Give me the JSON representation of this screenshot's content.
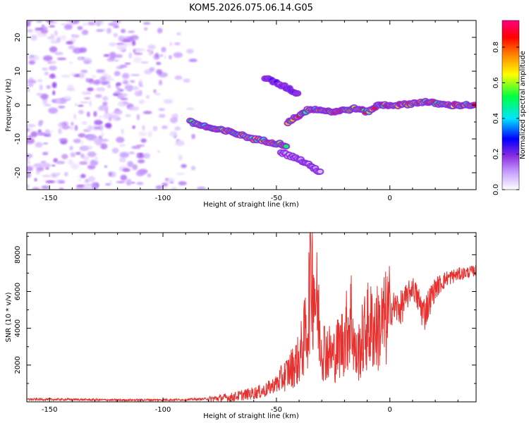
{
  "title": "KOM5.2026.075.06.14.G05",
  "colors": {
    "snr_line": "#e8312f",
    "axis": "#000000",
    "background": "#ffffff",
    "colormap": [
      "#ffffff",
      "#c9a3ff",
      "#8a2be2",
      "#0000ff",
      "#00e5ff",
      "#00ff40",
      "#ffff00",
      "#ff8000",
      "#ff0000",
      "#ff0080"
    ]
  },
  "chart_data": [
    {
      "type": "heatmap",
      "title": "KOM5.2026.075.06.14.G05",
      "xlabel": "Height of straight line (km)",
      "ylabel": "Frequency (Hz)",
      "xlim": [
        -160,
        38
      ],
      "ylim": [
        -25,
        25
      ],
      "x_ticks": [
        -150,
        -100,
        -50,
        0
      ],
      "y_ticks": [
        -20,
        -10,
        0,
        10,
        20
      ],
      "colorbar": {
        "label": "Normalized spectral amplitude",
        "range": [
          0,
          0.95
        ],
        "ticks": [
          0.0,
          0.2,
          0.4,
          0.6,
          0.8
        ]
      },
      "features": [
        {
          "kind": "noise",
          "x_range": [
            -160,
            -80
          ],
          "y_range": [
            -25,
            25
          ],
          "amplitude": 0.1
        },
        {
          "kind": "branch",
          "points": [
            [
              -88,
              -5
            ],
            [
              -78,
              -7
            ],
            [
              -70,
              -8
            ],
            [
              -60,
              -10
            ],
            [
              -52,
              -11
            ],
            [
              -45,
              -12
            ]
          ],
          "amplitude": 0.85
        },
        {
          "kind": "branch",
          "points": [
            [
              -48,
              -14
            ],
            [
              -40,
              -16
            ],
            [
              -30,
              -20
            ]
          ],
          "amplitude": 0.15
        },
        {
          "kind": "branch",
          "points": [
            [
              -55,
              8
            ],
            [
              -45,
              5
            ],
            [
              -40,
              3
            ]
          ],
          "amplitude": 0.3
        },
        {
          "kind": "branch",
          "points": [
            [
              -45,
              -5
            ],
            [
              -35,
              -1
            ],
            [
              -25,
              -2
            ],
            [
              -15,
              -1
            ],
            [
              -10,
              -2
            ],
            [
              -5,
              0
            ],
            [
              5,
              0
            ],
            [
              15,
              1
            ],
            [
              25,
              0
            ],
            [
              38,
              0
            ]
          ],
          "amplitude": 0.95
        }
      ]
    },
    {
      "type": "line",
      "xlabel": "Height of straight line (km)",
      "ylabel": "SNR (10 * v/v)",
      "xlim": [
        -160,
        38
      ],
      "ylim": [
        0,
        9200
      ],
      "x_ticks": [
        -150,
        -100,
        -50,
        0
      ],
      "y_ticks": [
        2000,
        4000,
        6000,
        8000
      ],
      "series": [
        {
          "x": [
            -160,
            -140,
            -120,
            -100,
            -90,
            -80,
            -70,
            -60,
            -55,
            -50,
            -45,
            -40,
            -36,
            -35,
            -30,
            -25,
            -20,
            -17,
            -15,
            -10,
            -5,
            0,
            5,
            10,
            15,
            20,
            25,
            30,
            38
          ],
          "y": [
            150,
            140,
            110,
            120,
            130,
            180,
            300,
            550,
            700,
            1100,
            1800,
            2600,
            4800,
            9200,
            3400,
            2800,
            3900,
            5300,
            2600,
            4600,
            4500,
            5300,
            5300,
            6400,
            5000,
            6300,
            6800,
            7000,
            7200
          ]
        }
      ]
    }
  ]
}
